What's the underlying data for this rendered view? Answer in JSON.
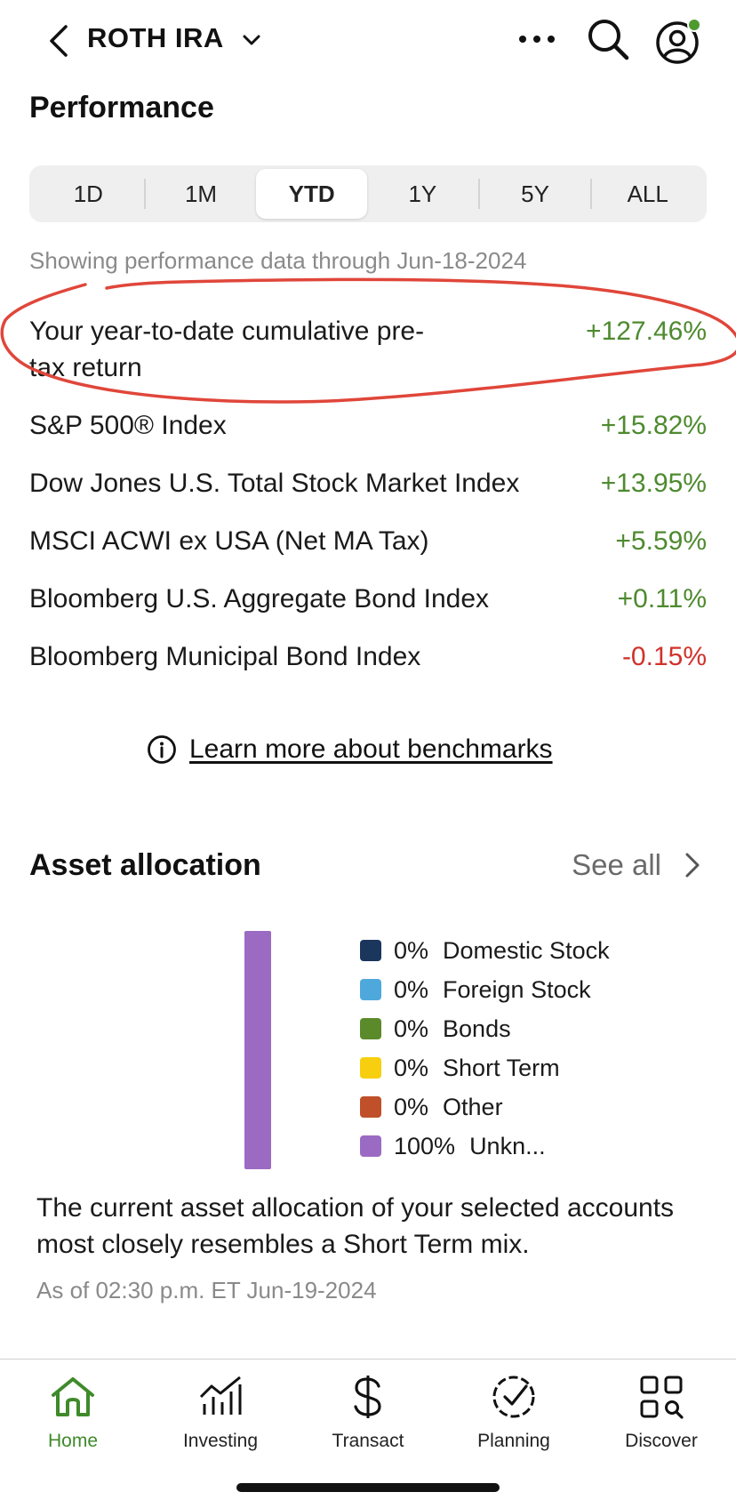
{
  "header": {
    "account_name": "ROTH IRA",
    "icons": [
      "back-chevron-icon",
      "dropdown-chevron-icon",
      "more-dots-icon",
      "search-icon",
      "profile-icon"
    ]
  },
  "performance": {
    "title": "Performance",
    "tabs": [
      "1D",
      "1M",
      "YTD",
      "1Y",
      "5Y",
      "ALL"
    ],
    "selected_tab": "YTD",
    "note": "Showing performance data through Jun-18-2024",
    "rows": [
      {
        "label_line1": "Your year-to-date cumulative pre-",
        "label_line2": "tax return",
        "value": "+127.46%",
        "status": "positive"
      },
      {
        "label": "S&P 500® Index",
        "value": "+15.82%",
        "status": "positive"
      },
      {
        "label": "Dow Jones U.S. Total Stock Market Index",
        "value": "+13.95%",
        "status": "positive"
      },
      {
        "label": "MSCI ACWI ex USA (Net MA Tax)",
        "value": "+5.59%",
        "status": "positive"
      },
      {
        "label": "Bloomberg U.S. Aggregate Bond Index",
        "value": "+0.11%",
        "status": "positive"
      },
      {
        "label": "Bloomberg Municipal Bond Index",
        "value": "-0.15%",
        "status": "negative"
      }
    ],
    "learn_more": "Learn more about benchmarks"
  },
  "allocation": {
    "title": "Asset allocation",
    "see_all": "See all",
    "legend": [
      {
        "pct": "0%",
        "label": "Domestic Stock",
        "color": "#1b365d"
      },
      {
        "pct": "0%",
        "label": "Foreign Stock",
        "color": "#4fa8dc"
      },
      {
        "pct": "0%",
        "label": "Bonds",
        "color": "#5b8a2a"
      },
      {
        "pct": "0%",
        "label": "Short Term",
        "color": "#f7cf0e"
      },
      {
        "pct": "0%",
        "label": "Other",
        "color": "#c0502a"
      },
      {
        "pct": "100%",
        "label": "Unkn...",
        "color": "#9b6bc3"
      }
    ],
    "description": "The current asset allocation of your selected accounts most closely resembles a Short Term mix.",
    "as_of": "As of 02:30 p.m. ET Jun-19-2024"
  },
  "tabbar": {
    "items": [
      {
        "label": "Home",
        "icon": "home-icon",
        "active": true
      },
      {
        "label": "Investing",
        "icon": "investing-chart-icon",
        "active": false
      },
      {
        "label": "Transact",
        "icon": "dollar-icon",
        "active": false
      },
      {
        "label": "Planning",
        "icon": "planning-check-icon",
        "active": false
      },
      {
        "label": "Discover",
        "icon": "discover-grid-icon",
        "active": false
      }
    ]
  },
  "colors": {
    "positive": "#4e8a2f",
    "negative": "#d0322b",
    "annotation": "#e0463a",
    "accent_green": "#3f8a2a"
  }
}
